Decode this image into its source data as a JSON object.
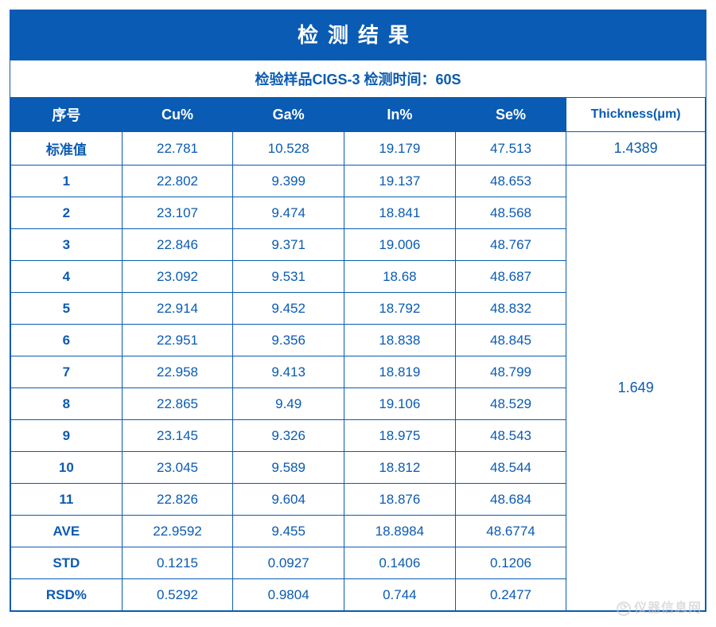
{
  "title": "检测结果",
  "subtitle": "检验样品CIGS-3 检测时间：60S",
  "table": {
    "type": "table",
    "columns": [
      "序号",
      "Cu%",
      "Ga%",
      "In%",
      "Se%",
      "Thickness(μm)"
    ],
    "column_widths_pct": [
      16,
      16,
      16,
      16,
      16,
      20
    ],
    "header_bg": "#0a5bb3",
    "header_fg": "#ffffff",
    "thickness_header_bg": "#ffffff",
    "thickness_header_fg": "#0a5bb3",
    "cell_fg": "#0a5bb3",
    "border_color": "#0a5bb3",
    "background_color": "#ffffff",
    "title_fontsize": 26,
    "header_fontsize": 18,
    "cell_fontsize": 17,
    "rows_standard": {
      "label": "标准值",
      "cu": "22.781",
      "ga": "10.528",
      "in": "19.179",
      "se": "47.513",
      "thickness": "1.4389"
    },
    "rows": [
      {
        "label": "1",
        "cu": "22.802",
        "ga": "9.399",
        "in": "19.137",
        "se": "48.653"
      },
      {
        "label": "2",
        "cu": "23.107",
        "ga": "9.474",
        "in": "18.841",
        "se": "48.568"
      },
      {
        "label": "3",
        "cu": "22.846",
        "ga": "9.371",
        "in": "19.006",
        "se": "48.767"
      },
      {
        "label": "4",
        "cu": "23.092",
        "ga": "9.531",
        "in": "18.68",
        "se": "48.687"
      },
      {
        "label": "5",
        "cu": "22.914",
        "ga": "9.452",
        "in": "18.792",
        "se": "48.832"
      },
      {
        "label": "6",
        "cu": "22.951",
        "ga": "9.356",
        "in": "18.838",
        "se": "48.845"
      },
      {
        "label": "7",
        "cu": "22.958",
        "ga": "9.413",
        "in": "18.819",
        "se": "48.799"
      },
      {
        "label": "8",
        "cu": "22.865",
        "ga": "9.49",
        "in": "19.106",
        "se": "48.529"
      },
      {
        "label": "9",
        "cu": "23.145",
        "ga": "9.326",
        "in": "18.975",
        "se": "48.543"
      },
      {
        "label": "10",
        "cu": "23.045",
        "ga": "9.589",
        "in": "18.812",
        "se": "48.544"
      },
      {
        "label": "11",
        "cu": "22.826",
        "ga": "9.604",
        "in": "18.876",
        "se": "48.684"
      },
      {
        "label": "AVE",
        "cu": "22.9592",
        "ga": "9.455",
        "in": "18.8984",
        "se": "48.6774"
      },
      {
        "label": "STD",
        "cu": "0.1215",
        "ga": "0.0927",
        "in": "0.1406",
        "se": "0.1206"
      },
      {
        "label": "RSD%",
        "cu": "0.5292",
        "ga": "0.9804",
        "in": "0.744",
        "se": "0.2477"
      }
    ],
    "thickness_merged_value": "1.649",
    "thickness_rowspan": 14
  },
  "watermark": {
    "text": "仪器信息网",
    "color": "#c8c8c8",
    "opacity": 0.6
  }
}
